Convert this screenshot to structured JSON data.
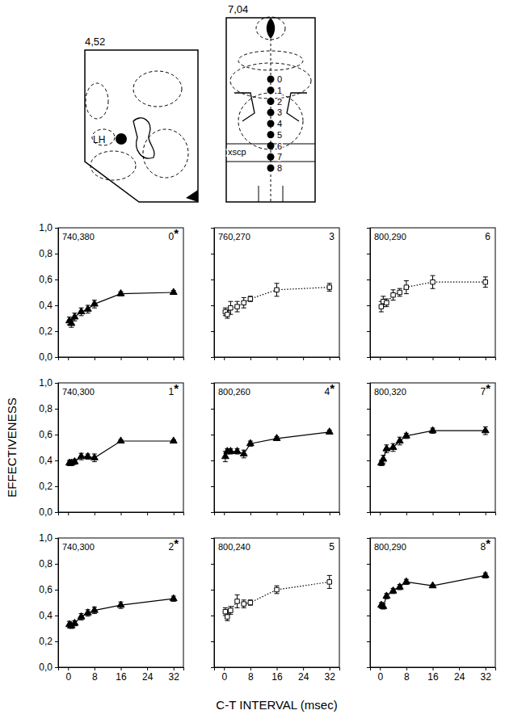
{
  "figure": {
    "ylabel": "EFFECTIVENESS",
    "xlabel": "C-T INTERVAL (msec)"
  },
  "diagram": {
    "left": {
      "label": "4,52",
      "region": "LH"
    },
    "right": {
      "label": "7,04",
      "region": "xscp",
      "sites": [
        0,
        1,
        2,
        3,
        4,
        5,
        6,
        7,
        8
      ]
    }
  },
  "chart_data": [
    {
      "type": "line",
      "annotations": [
        "740,380",
        "0*"
      ],
      "x": [
        0.4,
        1,
        2,
        4,
        6,
        8,
        16,
        32
      ],
      "values": [
        0.28,
        0.26,
        0.31,
        0.35,
        0.37,
        0.41,
        0.49,
        0.5
      ],
      "errors": [
        0.03,
        0.03,
        0.03,
        0.03,
        0.03,
        0.03,
        0.015,
        0.015
      ],
      "marker": "triangle",
      "line_style": "solid",
      "color": "#000000",
      "xlim": [
        -3,
        35
      ],
      "ylim": [
        0,
        1
      ],
      "xticks": [
        0,
        8,
        16,
        24,
        32
      ],
      "yticks": [
        {
          "value": 0,
          "label": "0,0"
        },
        {
          "value": 0.2,
          "label": "0,2"
        },
        {
          "value": 0.4,
          "label": "0,4"
        },
        {
          "value": 0.6,
          "label": "0,6"
        },
        {
          "value": 0.8,
          "label": "0,8"
        },
        {
          "value": 1,
          "label": "1,0"
        }
      ],
      "tick_labels": "y"
    },
    {
      "type": "line",
      "annotations": [
        "740,300",
        "1*"
      ],
      "x": [
        0.4,
        1,
        2,
        4,
        6,
        8,
        16,
        32
      ],
      "values": [
        0.38,
        0.38,
        0.39,
        0.43,
        0.43,
        0.42,
        0.55,
        0.55
      ],
      "errors": [
        0.02,
        0.02,
        0.02,
        0.025,
        0.02,
        0.03,
        0.01,
        0.01
      ],
      "marker": "triangle",
      "line_style": "solid",
      "color": "#000000",
      "xlim": [
        -3,
        35
      ],
      "ylim": [
        0,
        1
      ],
      "xticks": [
        0,
        8,
        16,
        24,
        32
      ],
      "yticks": [
        {
          "value": 0,
          "label": "0,0"
        },
        {
          "value": 0.2,
          "label": "0,2"
        },
        {
          "value": 0.4,
          "label": "0,4"
        },
        {
          "value": 0.6,
          "label": "0,6"
        },
        {
          "value": 0.8,
          "label": "0,8"
        },
        {
          "value": 1,
          "label": "1,0"
        }
      ],
      "tick_labels": "y"
    },
    {
      "type": "line",
      "annotations": [
        "740,300",
        "2*"
      ],
      "x": [
        0.4,
        1,
        2,
        4,
        6,
        8,
        16,
        32
      ],
      "values": [
        0.33,
        0.32,
        0.34,
        0.39,
        0.42,
        0.44,
        0.48,
        0.53
      ],
      "errors": [
        0.025,
        0.02,
        0.02,
        0.025,
        0.025,
        0.025,
        0.025,
        0.02
      ],
      "marker": "triangle",
      "line_style": "solid",
      "color": "#000000",
      "xlim": [
        -3,
        35
      ],
      "ylim": [
        0,
        1
      ],
      "xticks": [
        0,
        8,
        16,
        24,
        32
      ],
      "yticks": [
        {
          "value": 0,
          "label": "0,0"
        },
        {
          "value": 0.2,
          "label": "0,2"
        },
        {
          "value": 0.4,
          "label": "0,4"
        },
        {
          "value": 0.6,
          "label": "0,6"
        },
        {
          "value": 0.8,
          "label": "0,8"
        },
        {
          "value": 1,
          "label": "1,0"
        }
      ]
    },
    {
      "type": "line",
      "annotations": [
        "760,270",
        "3"
      ],
      "x": [
        0.4,
        1,
        2,
        4,
        6,
        8,
        16,
        32
      ],
      "values": [
        0.35,
        0.33,
        0.38,
        0.39,
        0.42,
        0.45,
        0.52,
        0.54
      ],
      "errors": [
        0.03,
        0.03,
        0.05,
        0.04,
        0.04,
        0.02,
        0.05,
        0.03
      ],
      "marker": "square",
      "line_style": "dotted",
      "color": "#000000",
      "xlim": [
        -3,
        35
      ],
      "ylim": [
        0,
        1
      ],
      "xticks": [
        0,
        8,
        16,
        24,
        32
      ],
      "yticks": [
        {
          "value": 0,
          "label": "0,0"
        },
        {
          "value": 0.2,
          "label": "0,2"
        },
        {
          "value": 0.4,
          "label": "0,4"
        },
        {
          "value": 0.6,
          "label": "0,6"
        },
        {
          "value": 0.8,
          "label": "0,8"
        },
        {
          "value": 1,
          "label": "1,0"
        }
      ],
      "tick_labels": false
    },
    {
      "type": "line",
      "annotations": [
        "800,260",
        "4*"
      ],
      "x": [
        0.4,
        1,
        2,
        4,
        6,
        8,
        16,
        32
      ],
      "values": [
        0.43,
        0.47,
        0.47,
        0.47,
        0.45,
        0.53,
        0.57,
        0.62
      ],
      "errors": [
        0.04,
        0.02,
        0.02,
        0.02,
        0.03,
        0.02,
        0.015,
        0.015
      ],
      "marker": "triangle",
      "line_style": "solid",
      "color": "#000000",
      "xlim": [
        -3,
        35
      ],
      "ylim": [
        0,
        1
      ],
      "xticks": [
        0,
        8,
        16,
        24,
        32
      ],
      "yticks": [
        {
          "value": 0,
          "label": "0,0"
        },
        {
          "value": 0.2,
          "label": "0,2"
        },
        {
          "value": 0.4,
          "label": "0,4"
        },
        {
          "value": 0.6,
          "label": "0,6"
        },
        {
          "value": 0.8,
          "label": "0,8"
        },
        {
          "value": 1,
          "label": "1,0"
        }
      ],
      "tick_labels": false
    },
    {
      "type": "line",
      "annotations": [
        "800,240",
        "5"
      ],
      "x": [
        0.4,
        1,
        2,
        4,
        6,
        8,
        16,
        32
      ],
      "values": [
        0.43,
        0.39,
        0.44,
        0.51,
        0.49,
        0.5,
        0.6,
        0.66
      ],
      "errors": [
        0.03,
        0.03,
        0.03,
        0.05,
        0.03,
        0.02,
        0.03,
        0.05
      ],
      "marker": "square",
      "line_style": "dotted",
      "color": "#000000",
      "xlim": [
        -3,
        35
      ],
      "ylim": [
        0,
        1
      ],
      "xticks": [
        0,
        8,
        16,
        24,
        32
      ],
      "yticks": [
        {
          "value": 0,
          "label": "0,0"
        },
        {
          "value": 0.2,
          "label": "0,2"
        },
        {
          "value": 0.4,
          "label": "0,4"
        },
        {
          "value": 0.6,
          "label": "0,6"
        },
        {
          "value": 0.8,
          "label": "0,8"
        },
        {
          "value": 1,
          "label": "1,0"
        }
      ],
      "tick_labels": "x"
    },
    {
      "type": "line",
      "annotations": [
        "800,290",
        "6"
      ],
      "x": [
        0.4,
        1,
        2,
        4,
        6,
        8,
        16,
        32
      ],
      "values": [
        0.39,
        0.43,
        0.42,
        0.48,
        0.5,
        0.54,
        0.58,
        0.58
      ],
      "errors": [
        0.04,
        0.04,
        0.03,
        0.04,
        0.03,
        0.05,
        0.05,
        0.04
      ],
      "marker": "square",
      "line_style": "dotted",
      "color": "#000000",
      "xlim": [
        -3,
        35
      ],
      "ylim": [
        0,
        1
      ],
      "xticks": [
        0,
        8,
        16,
        24,
        32
      ],
      "yticks": [
        {
          "value": 0,
          "label": "0,0"
        },
        {
          "value": 0.2,
          "label": "0,2"
        },
        {
          "value": 0.4,
          "label": "0,4"
        },
        {
          "value": 0.6,
          "label": "0,6"
        },
        {
          "value": 0.8,
          "label": "0,8"
        },
        {
          "value": 1,
          "label": "1,0"
        }
      ],
      "tick_labels": false
    },
    {
      "type": "line",
      "annotations": [
        "800,320",
        "7*"
      ],
      "x": [
        0.4,
        1,
        2,
        4,
        6,
        8,
        16,
        32
      ],
      "values": [
        0.38,
        0.41,
        0.49,
        0.5,
        0.55,
        0.59,
        0.63,
        0.63
      ],
      "errors": [
        0.02,
        0.03,
        0.03,
        0.03,
        0.03,
        0.02,
        0.02,
        0.03
      ],
      "marker": "triangle",
      "line_style": "solid",
      "color": "#000000",
      "xlim": [
        -3,
        35
      ],
      "ylim": [
        0,
        1
      ],
      "xticks": [
        0,
        8,
        16,
        24,
        32
      ],
      "yticks": [
        {
          "value": 0,
          "label": "0,0"
        },
        {
          "value": 0.2,
          "label": "0,2"
        },
        {
          "value": 0.4,
          "label": "0,4"
        },
        {
          "value": 0.6,
          "label": "0,6"
        },
        {
          "value": 0.8,
          "label": "0,8"
        },
        {
          "value": 1,
          "label": "1,0"
        }
      ],
      "tick_labels": false
    },
    {
      "type": "line",
      "annotations": [
        "800,290",
        "8*"
      ],
      "x": [
        0.4,
        1,
        2,
        4,
        6,
        8,
        16,
        32
      ],
      "values": [
        0.48,
        0.47,
        0.55,
        0.59,
        0.62,
        0.66,
        0.63,
        0.71
      ],
      "errors": [
        0.02,
        0.02,
        0.02,
        0.02,
        0.02,
        0.02,
        0.01,
        0.02
      ],
      "marker": "triangle",
      "line_style": "solid",
      "color": "#000000",
      "xlim": [
        -3,
        35
      ],
      "ylim": [
        0,
        1
      ],
      "xticks": [
        0,
        8,
        16,
        24,
        32
      ],
      "yticks": [
        {
          "value": 0,
          "label": "0,0"
        },
        {
          "value": 0.2,
          "label": "0,2"
        },
        {
          "value": 0.4,
          "label": "0,4"
        },
        {
          "value": 0.6,
          "label": "0,6"
        },
        {
          "value": 0.8,
          "label": "0,8"
        },
        {
          "value": 1,
          "label": "1,0"
        }
      ],
      "tick_labels": "x"
    }
  ]
}
